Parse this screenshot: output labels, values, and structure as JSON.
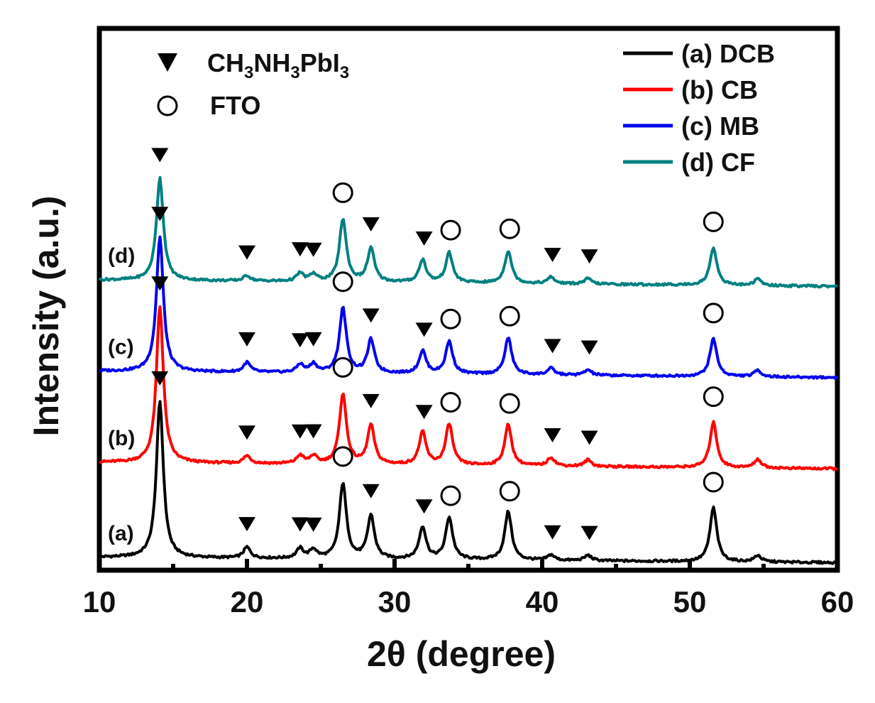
{
  "chart_data": {
    "type": "line",
    "title": "",
    "xlabel": "2θ (degree)",
    "ylabel": "Intensity (a.u.)",
    "xlim": [
      10,
      60
    ],
    "xticks": [
      10,
      20,
      30,
      40,
      50,
      60
    ],
    "xticks_minor": [
      15,
      25,
      35,
      45,
      55
    ],
    "ylim": [
      0,
      1
    ],
    "grid": false,
    "series_legend_position": "top-right",
    "marker_legend_position": "top-left",
    "series": [
      {
        "name": "(a) DCB",
        "label": "(a)",
        "color": "#000000",
        "baseline": 0.02,
        "slope": -0.01,
        "peaks": [
          [
            14.1,
            0.29
          ],
          [
            20.0,
            0.02
          ],
          [
            23.6,
            0.018
          ],
          [
            24.5,
            0.016
          ],
          [
            26.5,
            0.14
          ],
          [
            28.4,
            0.08
          ],
          [
            31.9,
            0.06
          ],
          [
            33.7,
            0.078
          ],
          [
            37.7,
            0.09
          ],
          [
            40.6,
            0.01
          ],
          [
            43.1,
            0.01
          ],
          [
            51.6,
            0.1
          ],
          [
            54.6,
            0.012
          ]
        ],
        "ch3nh3pbi3_markers": [
          14.1,
          20.0,
          23.6,
          24.5,
          28.4,
          32.0,
          40.7,
          43.2
        ],
        "fto_markers": [
          26.5,
          33.8,
          37.8,
          51.6
        ]
      },
      {
        "name": "(b) CB",
        "label": "(b)",
        "color": "#ff0000",
        "baseline": 0.196,
        "slope": -0.012,
        "peaks": [
          [
            14.1,
            0.29
          ],
          [
            20.0,
            0.014
          ],
          [
            23.6,
            0.015
          ],
          [
            24.5,
            0.014
          ],
          [
            26.5,
            0.13
          ],
          [
            28.4,
            0.072
          ],
          [
            31.9,
            0.06
          ],
          [
            33.7,
            0.076
          ],
          [
            37.7,
            0.076
          ],
          [
            40.6,
            0.016
          ],
          [
            43.1,
            0.012
          ],
          [
            51.6,
            0.084
          ],
          [
            54.6,
            0.016
          ]
        ],
        "ch3nh3pbi3_markers": [
          14.1,
          20.0,
          23.6,
          24.5,
          28.4,
          32.0,
          40.7,
          43.2
        ],
        "fto_markers": [
          26.5,
          33.8,
          37.8,
          51.6
        ]
      },
      {
        "name": "(c) MB",
        "label": "(c)",
        "color": "#0000ee",
        "baseline": 0.365,
        "slope": -0.012,
        "peaks": [
          [
            14.1,
            0.25
          ],
          [
            20.0,
            0.018
          ],
          [
            23.6,
            0.015
          ],
          [
            24.5,
            0.016
          ],
          [
            26.5,
            0.12
          ],
          [
            28.4,
            0.062
          ],
          [
            31.9,
            0.042
          ],
          [
            33.7,
            0.06
          ],
          [
            37.7,
            0.068
          ],
          [
            40.6,
            0.012
          ],
          [
            43.1,
            0.01
          ],
          [
            51.6,
            0.07
          ],
          [
            54.6,
            0.012
          ]
        ],
        "ch3nh3pbi3_markers": [
          14.1,
          20.0,
          23.6,
          24.5,
          28.4,
          32.0,
          40.7,
          43.2
        ],
        "fto_markers": [
          26.5,
          33.8,
          37.8,
          51.6
        ]
      },
      {
        "name": "(d) CF",
        "label": "(d)",
        "color": "#008080",
        "baseline": 0.534,
        "slope": -0.012,
        "peaks": [
          [
            14.1,
            0.19
          ],
          [
            20.0,
            0.01
          ],
          [
            23.6,
            0.015
          ],
          [
            24.5,
            0.013
          ],
          [
            26.5,
            0.116
          ],
          [
            28.4,
            0.062
          ],
          [
            31.9,
            0.042
          ],
          [
            33.7,
            0.055
          ],
          [
            37.7,
            0.06
          ],
          [
            40.6,
            0.012
          ],
          [
            43.1,
            0.01
          ],
          [
            51.6,
            0.07
          ],
          [
            54.6,
            0.012
          ]
        ],
        "ch3nh3pbi3_markers": [
          14.1,
          20.0,
          23.6,
          24.5,
          28.4,
          32.0,
          40.7,
          43.2
        ],
        "fto_markers": [
          26.5,
          33.8,
          37.8,
          51.6
        ]
      }
    ],
    "marker_legend": [
      {
        "symbol": "filled-triangle-down",
        "label": "CH3NH3PbI3"
      },
      {
        "symbol": "open-circle",
        "label": "FTO"
      }
    ]
  }
}
